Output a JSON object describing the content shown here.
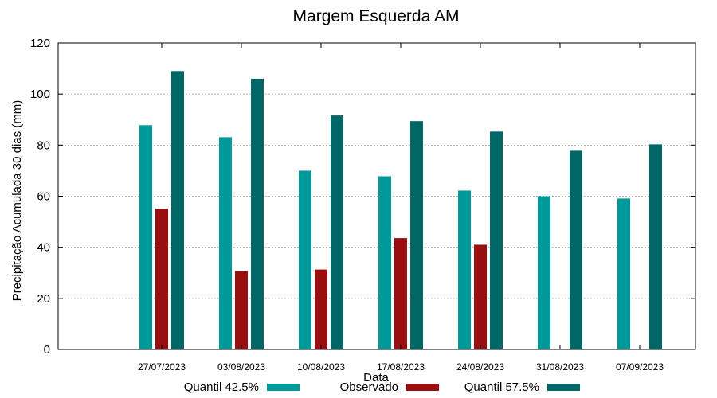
{
  "chart_data": {
    "type": "bar",
    "title": "Margem Esquerda AM",
    "xlabel": "Data",
    "ylabel": "Precipitação Acumulada 30 dias (mm)",
    "ylim": [
      0,
      120
    ],
    "yticks": [
      "0",
      "20",
      "40",
      "60",
      "80",
      "100",
      "120"
    ],
    "grid": true,
    "legend_position": "bottom",
    "categories": [
      "27/07/2023",
      "03/08/2023",
      "10/08/2023",
      "17/08/2023",
      "24/08/2023",
      "31/08/2023",
      "07/09/2023"
    ],
    "series": [
      {
        "name": "Quantil 42.5%",
        "color": "#009999",
        "values": [
          87.8,
          83.1,
          70.0,
          67.8,
          62.2,
          60.0,
          59.1
        ]
      },
      {
        "name": "Observado",
        "color": "#990f0f",
        "values": [
          55.1,
          30.7,
          31.3,
          43.6,
          41.0,
          null,
          null
        ]
      },
      {
        "name": "Quantil 57.5%",
        "color": "#006666",
        "values": [
          109.0,
          106.0,
          91.6,
          89.4,
          85.3,
          77.8,
          80.3
        ]
      }
    ]
  }
}
